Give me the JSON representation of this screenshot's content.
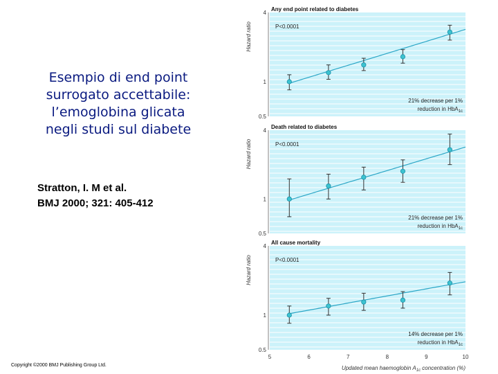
{
  "slide": {
    "title": "Esempio di end point\nsurrogato accettabile:\nl’emoglobina glicata\nnegli studi sul diabete",
    "citation_authors": "Stratton, I. M et al.",
    "citation_journal": "BMJ 2000; 321: 405-412",
    "copyright": "Copyright ©2000 BMJ Publishing Group Ltd."
  },
  "colors": {
    "panel_bg": "#ccf2fa",
    "grid": "#ffffff",
    "points": "#3cc3d0",
    "fit_line": "#2aa6c6",
    "error_bars": "#333333"
  },
  "chart_data": [
    {
      "type": "scatter",
      "title": "Any end point related to diabetes",
      "p_value": "P<0.0001",
      "ylabel": "Hazard ratio",
      "y_scale": "log",
      "ylim": [
        0.5,
        4
      ],
      "y_ticks": [
        "0.5",
        "1",
        "4"
      ],
      "xlim": [
        5,
        10
      ],
      "grid": true,
      "x": [
        5.5,
        6.5,
        7.4,
        8.4,
        9.6
      ],
      "y": [
        1.0,
        1.2,
        1.4,
        1.65,
        2.7
      ],
      "y_low": [
        0.85,
        1.05,
        1.25,
        1.45,
        2.3
      ],
      "y_high": [
        1.15,
        1.4,
        1.6,
        1.9,
        3.1
      ],
      "fit": {
        "x": [
          5.5,
          10
        ],
        "y": [
          0.97,
          2.85
        ]
      },
      "annotation_line1": "21% decrease per 1%",
      "annotation_line2": "reduction in HbA",
      "annotation_sub": "1c"
    },
    {
      "type": "scatter",
      "title": "Death related to diabetes",
      "p_value": "P<0.0001",
      "ylabel": "Hazard ratio",
      "y_scale": "log",
      "ylim": [
        0.5,
        4
      ],
      "y_ticks": [
        "0.5",
        "1",
        "4"
      ],
      "xlim": [
        5,
        10
      ],
      "grid": true,
      "x": [
        5.5,
        6.5,
        7.4,
        8.4,
        9.6
      ],
      "y": [
        1.0,
        1.3,
        1.55,
        1.75,
        2.7
      ],
      "y_low": [
        0.7,
        1.0,
        1.2,
        1.4,
        2.0
      ],
      "y_high": [
        1.5,
        1.65,
        1.9,
        2.2,
        3.7
      ],
      "fit": {
        "x": [
          5.5,
          10
        ],
        "y": [
          0.98,
          2.85
        ]
      },
      "annotation_line1": "21% decrease per 1%",
      "annotation_line2": "reduction in HbA",
      "annotation_sub": "1c"
    },
    {
      "type": "scatter",
      "title": "All cause mortality",
      "p_value": "P<0.0001",
      "ylabel": "Hazard ratio",
      "y_scale": "log",
      "ylim": [
        0.5,
        4
      ],
      "y_ticks": [
        "0.5",
        "1",
        "4"
      ],
      "xlim": [
        5,
        10
      ],
      "grid": true,
      "x": [
        5.5,
        6.5,
        7.4,
        8.4,
        9.6
      ],
      "y": [
        1.0,
        1.2,
        1.3,
        1.35,
        1.9
      ],
      "y_low": [
        0.85,
        1.0,
        1.1,
        1.15,
        1.5
      ],
      "y_high": [
        1.2,
        1.4,
        1.55,
        1.6,
        2.35
      ],
      "fit": {
        "x": [
          5.5,
          10
        ],
        "y": [
          1.03,
          1.95
        ]
      },
      "annotation_line1": "14% decrease per 1%",
      "annotation_line2": "reduction in HbA",
      "annotation_sub": "1c"
    }
  ],
  "x_axis": {
    "ticks": [
      "5",
      "6",
      "7",
      "8",
      "9",
      "10"
    ],
    "label_main": "Updated mean haemoglobin A",
    "label_sub": "1c",
    "label_tail": " concentration (%)"
  }
}
